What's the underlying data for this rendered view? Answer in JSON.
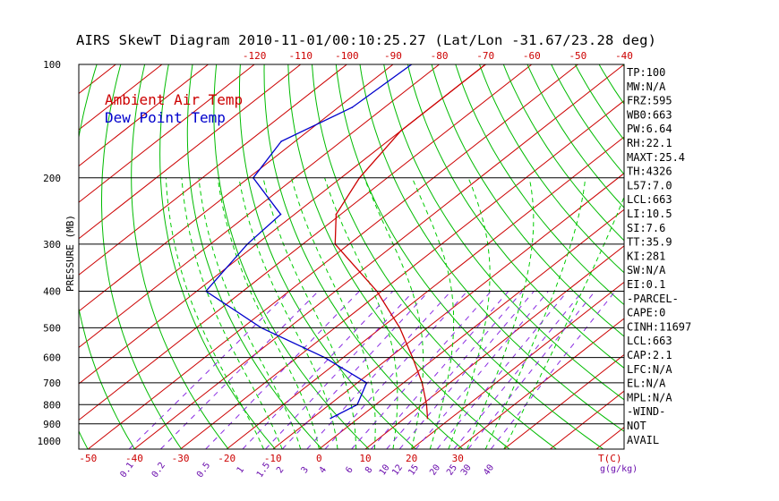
{
  "title": "AIRS SkewT Diagram 2010-11-01/00:10:25.27 (Lat/Lon -31.67/23.28 deg)",
  "chart_data": {
    "type": "line",
    "ylabel": "PRESSURE (MB)",
    "y_scale": "log",
    "ylim": [
      1050,
      100
    ],
    "xlim_surface_degC": [
      -52,
      66
    ],
    "isotherm_skew_degC": 106,
    "pressure_ticks": [
      100,
      200,
      300,
      400,
      500,
      600,
      700,
      800,
      900,
      1000
    ],
    "pressure_lines": [
      200,
      300,
      400,
      500,
      600,
      700,
      800,
      900
    ],
    "top_temp_ticks": [
      -120,
      -110,
      -100,
      -90,
      -80,
      -70,
      -60,
      -50,
      -40
    ],
    "bottom_temp_ticks": [
      -50,
      -40,
      -30,
      -20,
      -10,
      0,
      10,
      20,
      30
    ],
    "bottom_temp_unit": "T(C)",
    "mixing_ratio_ticks": [
      "0.1",
      "0.2",
      "0.5",
      "1",
      "1.5",
      "2",
      "3",
      "4",
      "6",
      "8",
      "10",
      "12",
      "15",
      "20",
      "25",
      "30",
      "40"
    ],
    "mixing_ratio_unit": "g(g/kg)",
    "series": [
      {
        "name": "Ambient Air Temp",
        "color": "#cc0000",
        "points": [
          [
            100,
            -70
          ],
          [
            150,
            -70
          ],
          [
            200,
            -66
          ],
          [
            250,
            -61
          ],
          [
            300,
            -53
          ],
          [
            400,
            -31
          ],
          [
            500,
            -16
          ],
          [
            600,
            -5
          ],
          [
            700,
            4
          ],
          [
            800,
            11
          ],
          [
            870,
            15
          ]
        ]
      },
      {
        "name": "Dew Point Temp",
        "color": "#0000cc",
        "points": [
          [
            100,
            -86
          ],
          [
            130,
            -87
          ],
          [
            160,
            -93
          ],
          [
            200,
            -89
          ],
          [
            250,
            -73
          ],
          [
            300,
            -72
          ],
          [
            400,
            -68
          ],
          [
            500,
            -46
          ],
          [
            600,
            -24
          ],
          [
            700,
            -8
          ],
          [
            800,
            -4
          ],
          [
            870,
            -6
          ]
        ]
      }
    ],
    "legend": [
      "Ambient Air Temp",
      "Dew Point Temp"
    ],
    "legend_position": "top-left",
    "grid": true,
    "indices": [
      "TP:100",
      "MW:N/A",
      "FRZ:595",
      "WB0:663",
      "PW:6.64",
      "RH:22.1",
      "MAXT:25.4",
      "TH:4326",
      "L57:7.0",
      "LCL:663",
      "LI:10.5",
      "SI:7.6",
      "TT:35.9",
      "KI:281",
      "SW:N/A",
      "EI:0.1",
      "-PARCEL-",
      "CAPE:0",
      "CINH:11697",
      "LCL:663",
      "CAP:2.1",
      "LFC:N/A",
      "EL:N/A",
      "MPL:N/A",
      "-WIND-",
      "NOT",
      "AVAIL"
    ]
  },
  "colors": {
    "isotherm": "#cc0000",
    "dry_adiabat": "#00bb00",
    "moist_adiabat": "#00cc00",
    "mixing_ratio": "#8a2be2",
    "pressure_line": "#000000",
    "top_tick_label": "#cc0000",
    "bottom_tick_label": "#cc0000",
    "mixing_label": "#6a0dad"
  }
}
